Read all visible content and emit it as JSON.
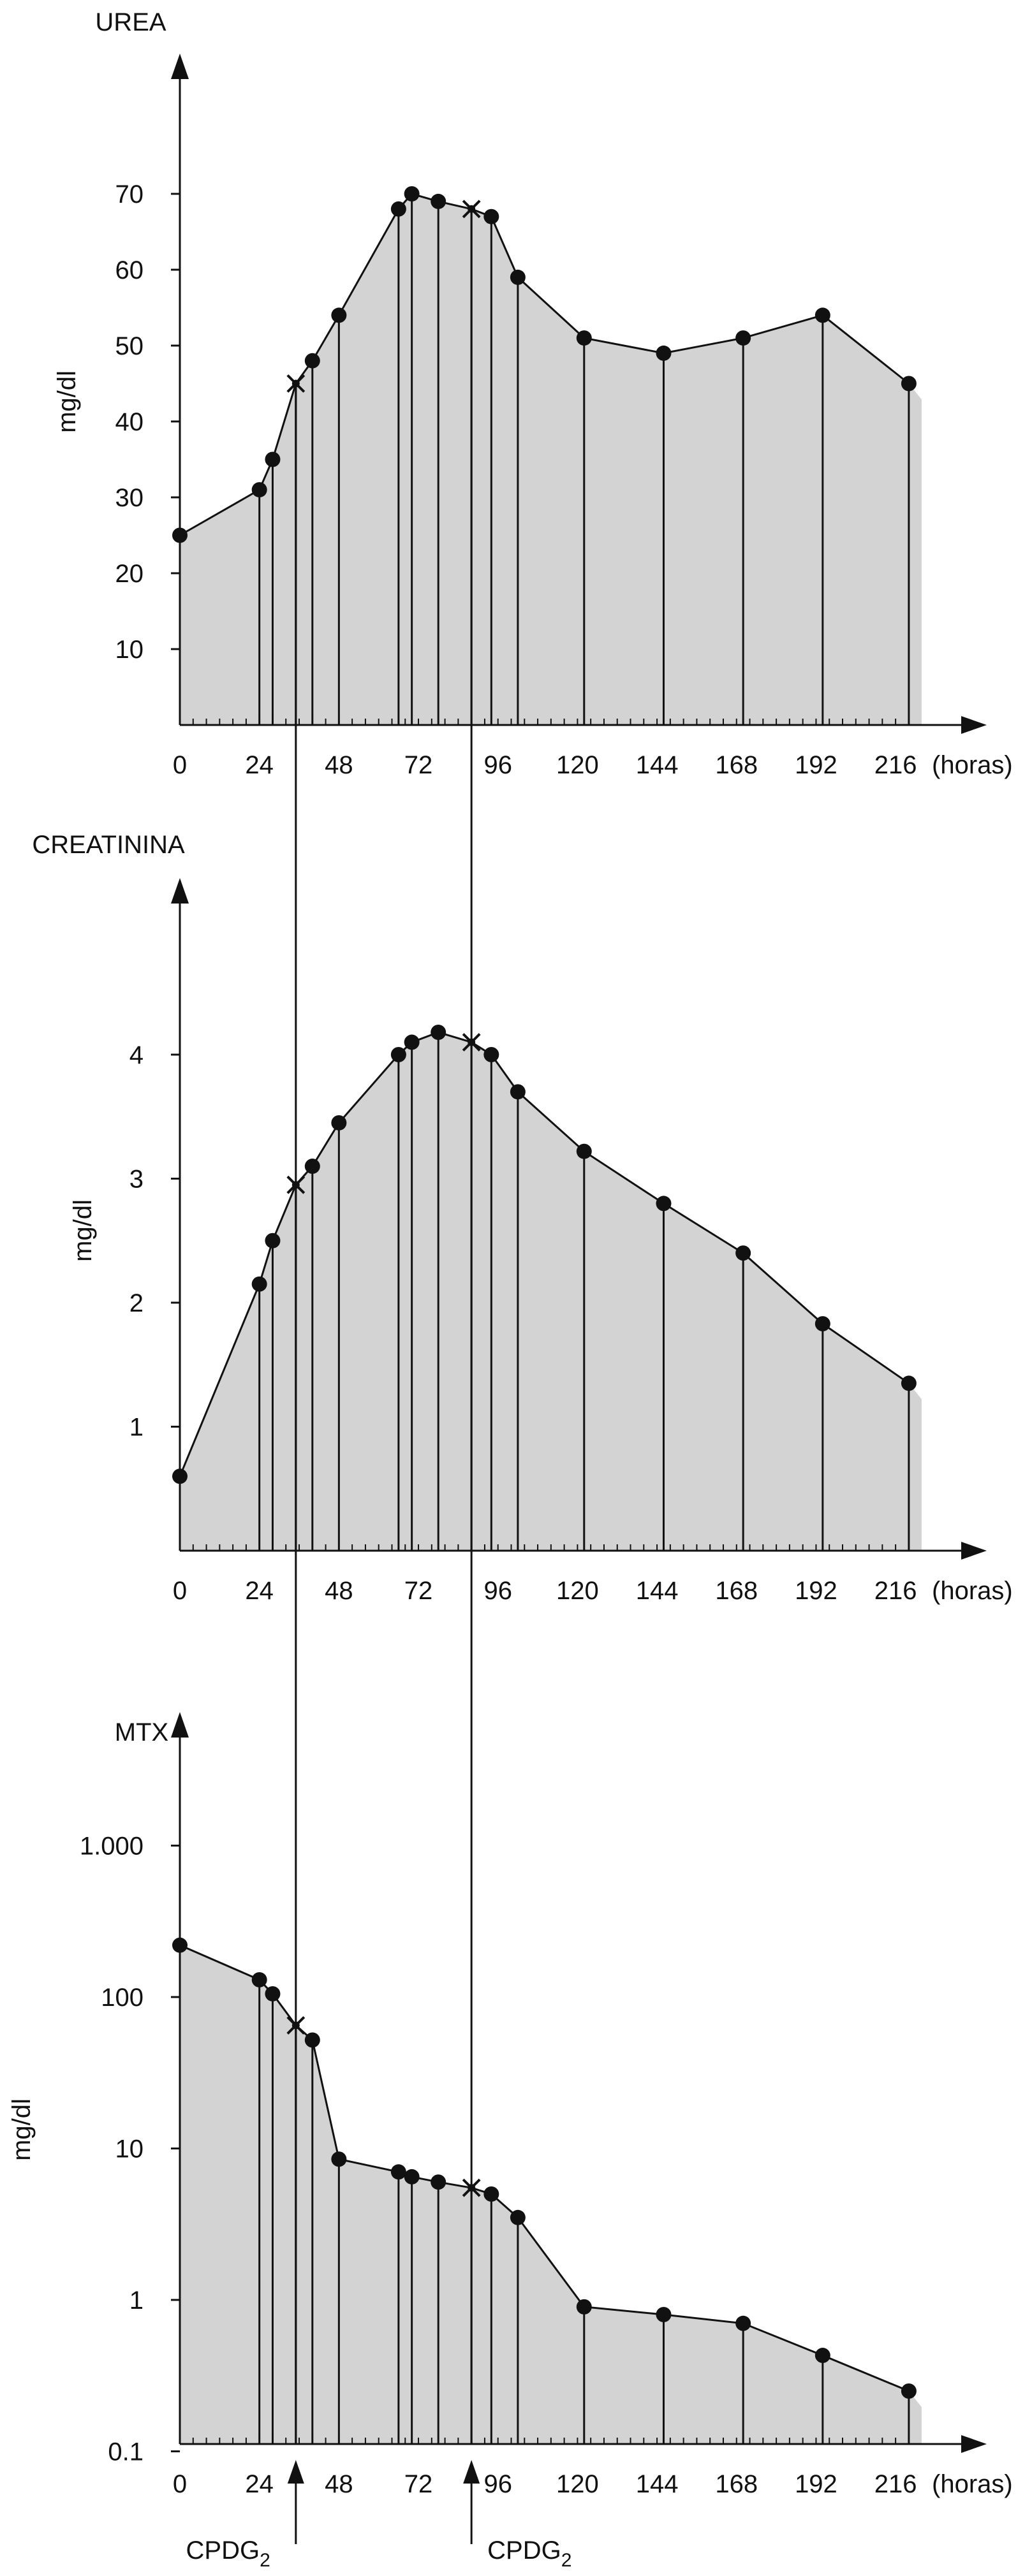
{
  "chart_data": [
    {
      "type": "area",
      "title": "UREA",
      "ylabel": "mg/dl",
      "xlabel": "(horas)",
      "xlim": [
        0,
        216
      ],
      "ylim": [
        0,
        80
      ],
      "x_ticks": [
        0,
        24,
        48,
        72,
        96,
        120,
        144,
        168,
        192,
        216
      ],
      "x_tick_labels": [
        "0",
        "24",
        "48",
        "72",
        "96",
        "120",
        "144",
        "168",
        "192",
        "216"
      ],
      "y_ticks": [
        10,
        20,
        30,
        40,
        50,
        60,
        70
      ],
      "y_tick_labels": [
        "10",
        "20",
        "30",
        "40",
        "50",
        "60",
        "70"
      ],
      "x": [
        0,
        24,
        28,
        35,
        40,
        48,
        66,
        70,
        78,
        88,
        94,
        102,
        122,
        146,
        170,
        194,
        220
      ],
      "values": [
        25,
        31,
        35,
        45,
        48,
        54,
        68,
        70,
        69,
        68,
        67,
        59,
        51,
        49,
        51,
        54,
        45
      ],
      "marker": [
        "dot",
        "dot",
        "dot",
        "cross",
        "dot",
        "dot",
        "dot",
        "dot",
        "dot",
        "cross",
        "dot",
        "dot",
        "dot",
        "dot",
        "dot",
        "dot",
        "dot"
      ],
      "grid": false
    },
    {
      "type": "area",
      "title": "CREATININA",
      "ylabel": "mg/dl",
      "xlabel": "(horas)",
      "xlim": [
        0,
        216
      ],
      "ylim": [
        0,
        5
      ],
      "x_ticks": [
        0,
        24,
        48,
        72,
        96,
        120,
        144,
        168,
        192,
        216
      ],
      "x_tick_labels": [
        "0",
        "24",
        "48",
        "72",
        "96",
        "120",
        "144",
        "168",
        "192",
        "216"
      ],
      "y_ticks": [
        1,
        2,
        3,
        4
      ],
      "y_tick_labels": [
        "1",
        "2",
        "3",
        "4"
      ],
      "x": [
        0,
        24,
        28,
        35,
        40,
        48,
        66,
        70,
        78,
        88,
        94,
        102,
        122,
        146,
        170,
        194,
        220
      ],
      "values": [
        0.6,
        2.15,
        2.5,
        2.95,
        3.1,
        3.45,
        4.0,
        4.1,
        4.18,
        4.1,
        4.0,
        3.7,
        3.22,
        2.8,
        2.4,
        1.83,
        1.35
      ],
      "marker": [
        "dot",
        "dot",
        "dot",
        "cross",
        "dot",
        "dot",
        "dot",
        "dot",
        "dot",
        "cross",
        "dot",
        "dot",
        "dot",
        "dot",
        "dot",
        "dot",
        "dot"
      ],
      "grid": false
    },
    {
      "type": "area",
      "title": "MTX",
      "ylabel": "mg/dl",
      "xlabel": "(horas)",
      "yscale": "log",
      "xlim": [
        0,
        216
      ],
      "ylim": [
        0.1,
        3000
      ],
      "x_ticks": [
        0,
        24,
        48,
        72,
        96,
        120,
        144,
        168,
        192,
        216
      ],
      "x_tick_labels": [
        "0",
        "24",
        "48",
        "72",
        "96",
        "120",
        "144",
        "168",
        "192",
        "216"
      ],
      "y_ticks": [
        0.1,
        1,
        10,
        100,
        1000
      ],
      "y_tick_labels": [
        "0.1",
        "1",
        "10",
        "100",
        "1.000"
      ],
      "x": [
        0,
        24,
        28,
        35,
        40,
        48,
        66,
        70,
        78,
        88,
        94,
        102,
        122,
        146,
        170,
        194,
        220
      ],
      "values": [
        220,
        130,
        105,
        65,
        52,
        8.5,
        7.0,
        6.5,
        6.0,
        5.5,
        5.0,
        3.5,
        0.9,
        0.8,
        0.7,
        0.43,
        0.25
      ],
      "marker": [
        "dot",
        "dot",
        "dot",
        "cross",
        "dot",
        "dot",
        "dot",
        "dot",
        "dot",
        "cross",
        "dot",
        "dot",
        "dot",
        "dot",
        "dot",
        "dot",
        "dot"
      ],
      "grid": false,
      "annotations": [
        {
          "x": 35,
          "text": "CPDG",
          "subscript": "2"
        },
        {
          "x": 88,
          "text": "CPDG",
          "subscript": "2"
        }
      ]
    }
  ],
  "colors": {
    "fill": "#d3d3d3",
    "line": "#111111",
    "marker": "#111111"
  }
}
